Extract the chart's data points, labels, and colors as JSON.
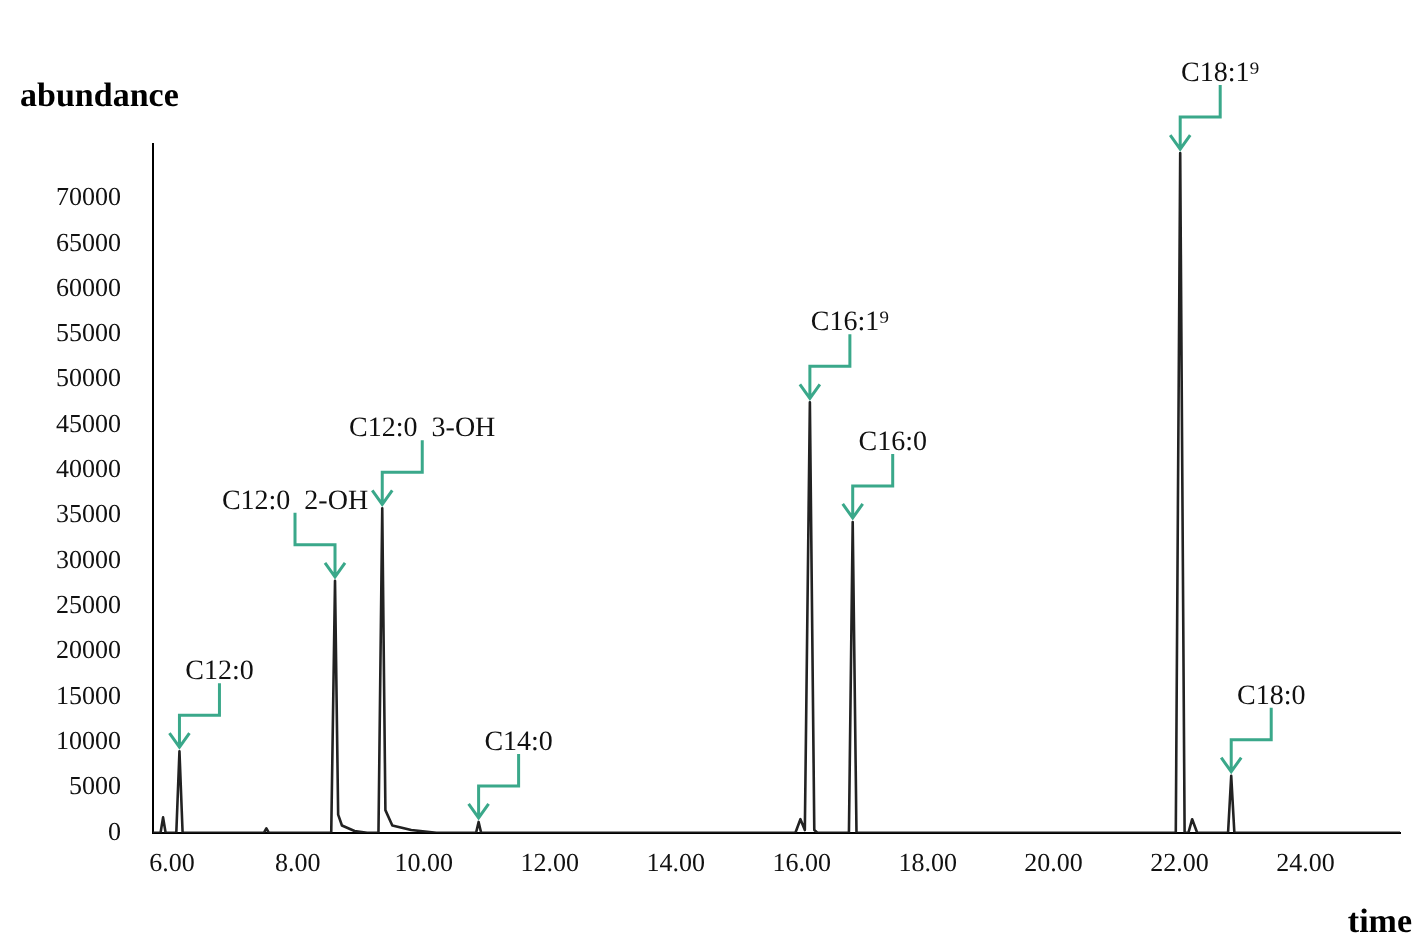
{
  "chart_data": {
    "type": "line",
    "xlabel": "time",
    "ylabel": "abundance",
    "color": "#222222",
    "marker": "none",
    "legend": false,
    "grid": false,
    "x": [
      5.7,
      5.82,
      5.86,
      5.9,
      6.07,
      6.12,
      6.17,
      7.46,
      7.5,
      7.54,
      8.53,
      8.59,
      8.64,
      8.7,
      8.9,
      9.1,
      9.28,
      9.34,
      9.39,
      9.5,
      9.8,
      10.2,
      10.83,
      10.87,
      10.91,
      15.9,
      15.98,
      16.05,
      16.13,
      16.2,
      16.25,
      16.75,
      16.81,
      16.87,
      21.94,
      22.01,
      22.08,
      22.14,
      22.2,
      22.28,
      22.77,
      22.82,
      22.87,
      25.5
    ],
    "values": [
      0,
      0,
      1700,
      0,
      0,
      9000,
      0,
      0,
      500,
      0,
      0,
      27800,
      2000,
      800,
      200,
      0,
      0,
      35800,
      2500,
      800,
      300,
      0,
      0,
      1200,
      0,
      0,
      1500,
      300,
      47500,
      300,
      0,
      0,
      34300,
      0,
      0,
      75000,
      0,
      0,
      1500,
      0,
      0,
      6300,
      0,
      0
    ],
    "xlim": [
      5.7,
      25.5
    ],
    "ylim": [
      0,
      76000
    ],
    "xticks": [
      {
        "value": 6,
        "label": "6.00"
      },
      {
        "value": 8,
        "label": "8.00"
      },
      {
        "value": 10,
        "label": "10.00"
      },
      {
        "value": 12,
        "label": "12.00"
      },
      {
        "value": 14,
        "label": "14.00"
      },
      {
        "value": 16,
        "label": "16.00"
      },
      {
        "value": 18,
        "label": "18.00"
      },
      {
        "value": 20,
        "label": "20.00"
      },
      {
        "value": 22,
        "label": "22.00"
      },
      {
        "value": 24,
        "label": "24.00"
      }
    ],
    "yticks": [
      0,
      5000,
      10000,
      15000,
      20000,
      25000,
      30000,
      35000,
      40000,
      45000,
      50000,
      55000,
      60000,
      65000,
      70000
    ],
    "annotations": [
      {
        "text": "C12:0",
        "x": 6.12,
        "y": 9000
      },
      {
        "text": "C12:0  2-OH",
        "x": 8.59,
        "y": 27800
      },
      {
        "text": "C12:0  3-OH",
        "x": 9.34,
        "y": 35800
      },
      {
        "text": "C14:0",
        "x": 10.87,
        "y": 1200
      },
      {
        "text": "C16:1⁹",
        "x": 16.13,
        "y": 47500
      },
      {
        "text": "C16:0",
        "x": 16.81,
        "y": 34300
      },
      {
        "text": "C18:1⁹",
        "x": 22.01,
        "y": 75000
      },
      {
        "text": "C18:0",
        "x": 22.82,
        "y": 6300
      }
    ]
  }
}
